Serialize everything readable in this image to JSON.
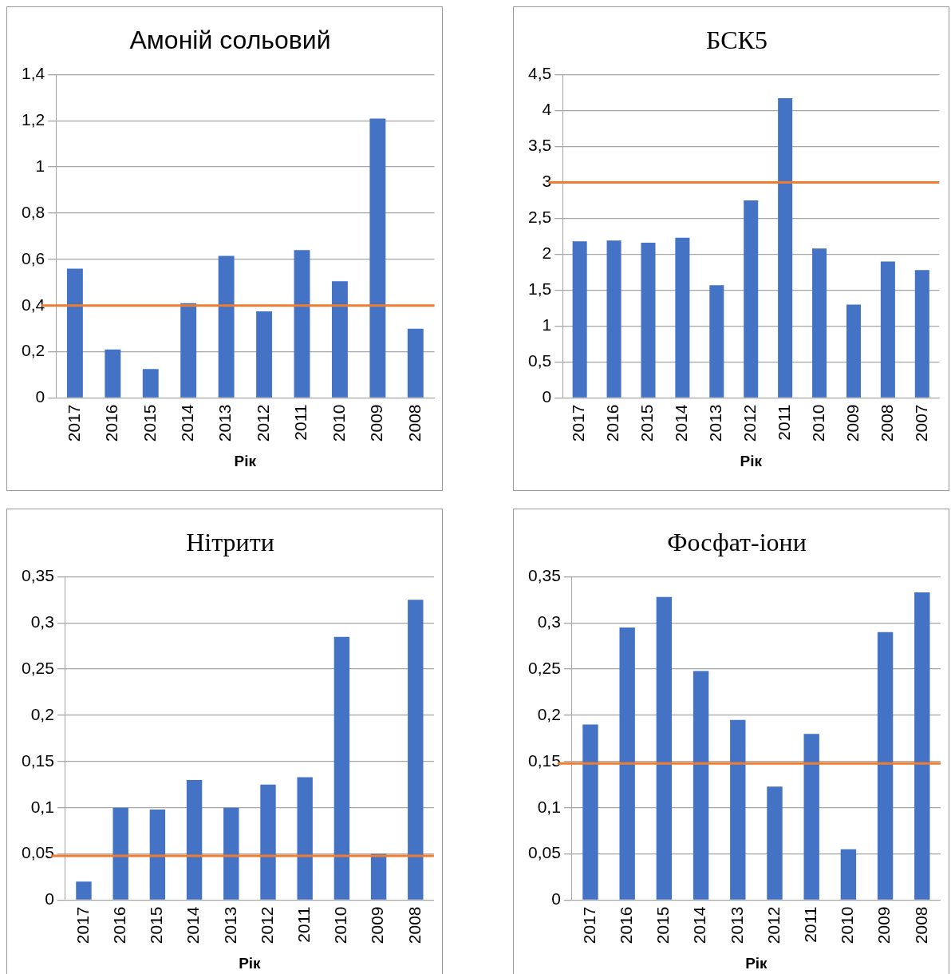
{
  "chart_data": [
    {
      "type": "bar",
      "title": "Амоній сольовий",
      "xlabel": "Рік",
      "categories": [
        "2017",
        "2016",
        "2015",
        "2014",
        "2013",
        "2012",
        "2011",
        "2010",
        "2009",
        "2008"
      ],
      "series": [
        {
          "color": "#4472c4",
          "values": [
            0.56,
            0.21,
            0.125,
            0.41,
            0.615,
            0.375,
            0.64,
            0.505,
            1.21,
            0.3
          ]
        }
      ],
      "ylim": [
        0,
        1.4
      ],
      "yticks": [
        0,
        {
          "value": 0.2,
          "label": "0,2"
        },
        {
          "value": 0.4,
          "label": "0,4"
        },
        {
          "value": 0.6,
          "label": "0,6"
        },
        {
          "value": 0.8,
          "label": "0,8"
        },
        1,
        {
          "value": 1.2,
          "label": "1,2"
        },
        {
          "value": 1.4,
          "label": "1,4"
        }
      ],
      "ref_lines": [
        {
          "axis": "y",
          "value": 0.4,
          "color": "#ed7d31"
        }
      ],
      "grid": "y",
      "legend": false
    },
    {
      "type": "bar",
      "title": "БСК5",
      "xlabel": "Рік",
      "categories": [
        "2017",
        "2016",
        "2015",
        "2014",
        "2013",
        "2012",
        "2011",
        "2010",
        "2009",
        "2008",
        "2007"
      ],
      "series": [
        {
          "color": "#4472c4",
          "values": [
            2.18,
            2.19,
            2.16,
            2.23,
            1.57,
            2.75,
            4.17,
            2.08,
            1.3,
            1.9,
            1.78
          ]
        }
      ],
      "ylim": [
        0,
        4.5
      ],
      "yticks": [
        0,
        {
          "value": 0.5,
          "label": "0,5"
        },
        1,
        {
          "value": 1.5,
          "label": "1,5"
        },
        2,
        {
          "value": 2.5,
          "label": "2,5"
        },
        3,
        {
          "value": 3.5,
          "label": "3,5"
        },
        4,
        {
          "value": 4.5,
          "label": "4,5"
        }
      ],
      "ref_lines": [
        {
          "axis": "y",
          "value": 3,
          "color": "#ed7d31"
        }
      ],
      "grid": "y",
      "legend": false
    },
    {
      "type": "bar",
      "title": "Нітрити",
      "xlabel": "Рік",
      "categories": [
        "2017",
        "2016",
        "2015",
        "2014",
        "2013",
        "2012",
        "2011",
        "2010",
        "2009",
        "2008"
      ],
      "series": [
        {
          "color": "#4472c4",
          "values": [
            0.02,
            0.1,
            0.098,
            0.13,
            0.1,
            0.125,
            0.133,
            0.285,
            0.05,
            0.325
          ]
        }
      ],
      "ylim": [
        0,
        0.35
      ],
      "yticks": [
        0,
        {
          "value": 0.05,
          "label": "0,05"
        },
        {
          "value": 0.1,
          "label": "0,1"
        },
        {
          "value": 0.15,
          "label": "0,15"
        },
        {
          "value": 0.2,
          "label": "0,2"
        },
        {
          "value": 0.25,
          "label": "0,25"
        },
        {
          "value": 0.3,
          "label": "0,3"
        },
        {
          "value": 0.35,
          "label": "0,35"
        }
      ],
      "ref_lines": [
        {
          "axis": "y",
          "value": 0.048,
          "color": "#ed7d31"
        }
      ],
      "grid": "y",
      "legend": false
    },
    {
      "type": "bar",
      "title": "Фосфат-іони",
      "xlabel": "Рік",
      "categories": [
        "2017",
        "2016",
        "2015",
        "2014",
        "2013",
        "2012",
        "2011",
        "2010",
        "2009",
        "2008"
      ],
      "series": [
        {
          "color": "#4472c4",
          "values": [
            0.19,
            0.295,
            0.328,
            0.248,
            0.195,
            0.123,
            0.18,
            0.055,
            0.29,
            0.333
          ]
        }
      ],
      "ylim": [
        0,
        0.35
      ],
      "yticks": [
        0,
        {
          "value": 0.05,
          "label": "0,05"
        },
        {
          "value": 0.1,
          "label": "0,1"
        },
        {
          "value": 0.15,
          "label": "0,15"
        },
        {
          "value": 0.2,
          "label": "0,2"
        },
        {
          "value": 0.25,
          "label": "0,25"
        },
        {
          "value": 0.3,
          "label": "0,3"
        },
        {
          "value": 0.35,
          "label": "0,35"
        }
      ],
      "ref_lines": [
        {
          "axis": "y",
          "value": 0.148,
          "color": "#ed7d31"
        }
      ],
      "grid": "y",
      "legend": false
    }
  ]
}
